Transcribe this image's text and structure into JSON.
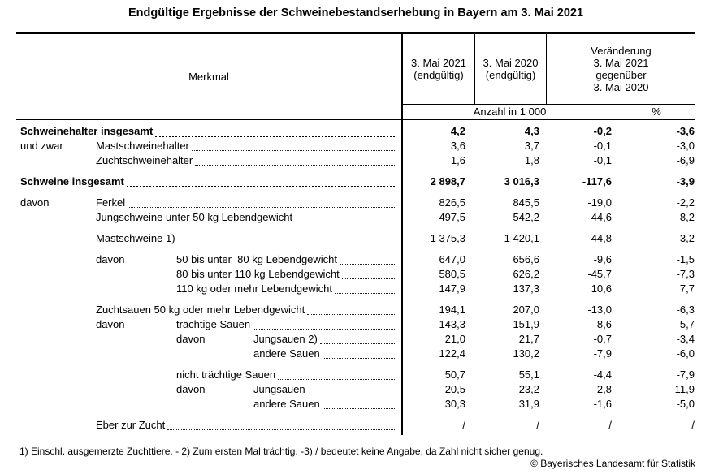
{
  "title": "Endgültige Ergebnisse der Schweinebestandserhebung in Bayern am 3. Mai 2021",
  "table": {
    "merkmal_header": "Merkmal",
    "col_2021": "3. Mai 2021\n(endgültig)",
    "col_2020": "3. Mai 2020\n(endgültig)",
    "col_change": "Veränderung\n3. Mai 2021\ngegenüber\n3. Mai 2020",
    "sub_anzahl": "Anzahl in 1 000",
    "sub_percent": "%",
    "rows": [
      {
        "prefix": "",
        "prefix_indent": 0,
        "label": "Schweinehalter insgesamt",
        "indent": 0,
        "bold": true,
        "gap": false,
        "values": [
          "4,2",
          "4,3",
          "-0,2",
          "-3,6"
        ]
      },
      {
        "prefix": "und zwar",
        "prefix_indent": 0,
        "label": "Mastschweinehalter",
        "indent": 1,
        "bold": false,
        "gap": false,
        "values": [
          "3,6",
          "3,7",
          "-0,1",
          "-3,0"
        ]
      },
      {
        "prefix": "",
        "prefix_indent": 0,
        "label": "Zuchtschweinehalter",
        "indent": 1,
        "bold": false,
        "gap": false,
        "values": [
          "1,6",
          "1,8",
          "-0,1",
          "-6,9"
        ]
      },
      {
        "prefix": "",
        "prefix_indent": 0,
        "label": "Schweine insgesamt",
        "indent": 0,
        "bold": true,
        "gap": true,
        "values": [
          "2 898,7",
          "3 016,3",
          "-117,6",
          "-3,9"
        ]
      },
      {
        "prefix": "davon",
        "prefix_indent": 0,
        "label": "Ferkel",
        "indent": 1,
        "bold": false,
        "gap": true,
        "values": [
          "826,5",
          "845,5",
          "-19,0",
          "-2,2"
        ]
      },
      {
        "prefix": "",
        "prefix_indent": 0,
        "label": "Jungschweine unter 50 kg Lebendgewicht",
        "indent": 1,
        "bold": false,
        "gap": false,
        "values": [
          "497,5",
          "542,2",
          "-44,6",
          "-8,2"
        ]
      },
      {
        "prefix": "",
        "prefix_indent": 0,
        "label": "Mastschweine 1)",
        "indent": 1,
        "bold": false,
        "gap": true,
        "values": [
          "1 375,3",
          "1 420,1",
          "-44,8",
          "-3,2"
        ]
      },
      {
        "prefix": "davon",
        "prefix_indent": 1,
        "label": "50 bis unter  80 kg Lebendgewicht",
        "indent": 2,
        "bold": false,
        "gap": true,
        "values": [
          "647,0",
          "656,6",
          "-9,6",
          "-1,5"
        ]
      },
      {
        "prefix": "",
        "prefix_indent": 0,
        "label": "80 bis unter 110 kg Lebendgewicht",
        "indent": 2,
        "bold": false,
        "gap": false,
        "values": [
          "580,5",
          "626,2",
          "-45,7",
          "-7,3"
        ]
      },
      {
        "prefix": "",
        "prefix_indent": 0,
        "label": "110 kg oder mehr Lebendgewicht",
        "indent": 2,
        "bold": false,
        "gap": false,
        "values": [
          "147,9",
          "137,3",
          "10,6",
          "7,7"
        ]
      },
      {
        "prefix": "",
        "prefix_indent": 0,
        "label": "Zuchtsauen 50 kg oder mehr Lebendgewicht",
        "indent": 1,
        "bold": false,
        "gap": true,
        "values": [
          "194,1",
          "207,0",
          "-13,0",
          "-6,3"
        ]
      },
      {
        "prefix": "davon",
        "prefix_indent": 1,
        "label": "trächtige Sauen",
        "indent": 2,
        "bold": false,
        "gap": false,
        "values": [
          "143,3",
          "151,9",
          "-8,6",
          "-5,7"
        ]
      },
      {
        "prefix": "davon",
        "prefix_indent": 2,
        "label": "Jungsauen 2)",
        "indent": 3,
        "bold": false,
        "gap": false,
        "values": [
          "21,0",
          "21,7",
          "-0,7",
          "-3,4"
        ]
      },
      {
        "prefix": "",
        "prefix_indent": 0,
        "label": "andere Sauen",
        "indent": 3,
        "bold": false,
        "gap": false,
        "values": [
          "122,4",
          "130,2",
          "-7,9",
          "-6,0"
        ]
      },
      {
        "prefix": "",
        "prefix_indent": 0,
        "label": "nicht trächtige Sauen",
        "indent": 2,
        "bold": false,
        "gap": true,
        "values": [
          "50,7",
          "55,1",
          "-4,4",
          "-7,9"
        ]
      },
      {
        "prefix": "davon",
        "prefix_indent": 2,
        "label": "Jungsauen",
        "indent": 3,
        "bold": false,
        "gap": false,
        "values": [
          "20,5",
          "23,2",
          "-2,8",
          "-11,9"
        ]
      },
      {
        "prefix": "",
        "prefix_indent": 0,
        "label": "andere Sauen",
        "indent": 3,
        "bold": false,
        "gap": false,
        "values": [
          "30,3",
          "31,9",
          "-1,6",
          "-5,0"
        ]
      },
      {
        "prefix": "",
        "prefix_indent": 0,
        "label": "Eber zur Zucht",
        "indent": 1,
        "bold": false,
        "gap": true,
        "values": [
          "/",
          "/",
          "/",
          "/"
        ]
      }
    ]
  },
  "footnote": "1) Einschl. ausgemerzte Zuchttiere. - 2) Zum ersten Mal trächtig. -3) / bedeutet keine Angabe, da Zahl nicht sicher genug.",
  "copyright": "© Bayerisches Landesamt für Statistik"
}
